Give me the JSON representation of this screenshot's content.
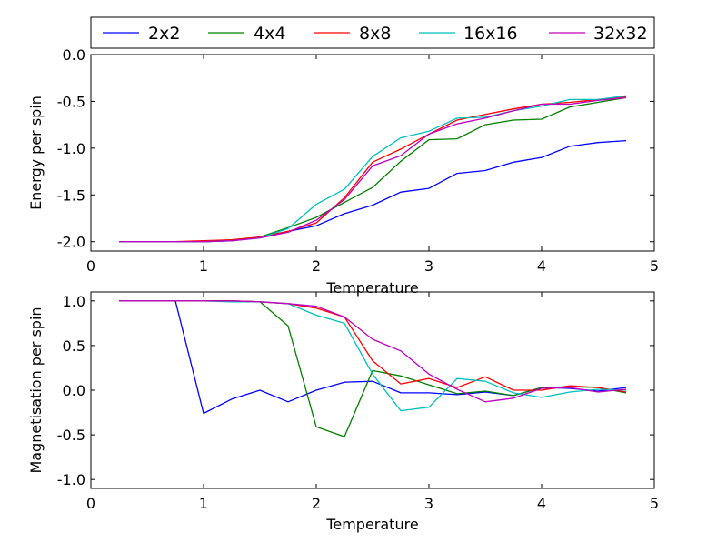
{
  "legend": {
    "entries": [
      {
        "name": "2x2",
        "color": "#0000ff"
      },
      {
        "name": "4x4",
        "color": "#008000"
      },
      {
        "name": "8x8",
        "color": "#ff0000"
      },
      {
        "name": "16x16",
        "color": "#00bfbf"
      },
      {
        "name": "32x32",
        "color": "#bf00bf"
      }
    ],
    "placement": "top"
  },
  "chart_data": [
    {
      "type": "line",
      "title": "",
      "xlabel": "Temperature",
      "ylabel": "Energy per spin",
      "xlim": [
        0,
        5
      ],
      "ylim": [
        -2.1,
        0.0
      ],
      "xticks": [
        "0",
        "1",
        "2",
        "3",
        "4",
        "5"
      ],
      "yticks": [
        "0.0",
        "-0.5",
        "-1.0",
        "-1.5",
        "-2.0"
      ],
      "x": [
        0.25,
        0.5,
        0.75,
        1.0,
        1.25,
        1.5,
        1.75,
        2.0,
        2.25,
        2.5,
        2.75,
        3.0,
        3.25,
        3.5,
        3.75,
        4.0,
        4.25,
        4.5,
        4.75
      ],
      "series": [
        {
          "name": "2x2",
          "values": [
            -2.0,
            -2.0,
            -2.0,
            -2.0,
            -1.99,
            -1.95,
            -1.89,
            -1.83,
            -1.7,
            -1.61,
            -1.47,
            -1.43,
            -1.27,
            -1.24,
            -1.15,
            -1.1,
            -0.98,
            -0.94,
            -0.92
          ]
        },
        {
          "name": "4x4",
          "values": [
            -2.0,
            -2.0,
            -2.0,
            -2.0,
            -1.98,
            -1.95,
            -1.85,
            -1.74,
            -1.58,
            -1.42,
            -1.14,
            -0.91,
            -0.9,
            -0.75,
            -0.7,
            -0.69,
            -0.56,
            -0.51,
            -0.46
          ]
        },
        {
          "name": "8x8",
          "values": [
            -2.0,
            -2.0,
            -2.0,
            -1.99,
            -1.98,
            -1.95,
            -1.89,
            -1.8,
            -1.53,
            -1.15,
            -1.01,
            -0.85,
            -0.7,
            -0.64,
            -0.58,
            -0.53,
            -0.51,
            -0.48,
            -0.45
          ]
        },
        {
          "name": "16x16",
          "values": [
            -2.0,
            -2.0,
            -2.0,
            -2.0,
            -1.99,
            -1.96,
            -1.86,
            -1.6,
            -1.44,
            -1.09,
            -0.89,
            -0.82,
            -0.68,
            -0.67,
            -0.6,
            -0.55,
            -0.48,
            -0.48,
            -0.44
          ]
        },
        {
          "name": "32x32",
          "values": [
            -2.0,
            -2.0,
            -2.0,
            -2.0,
            -1.99,
            -1.96,
            -1.9,
            -1.77,
            -1.55,
            -1.19,
            -1.08,
            -0.85,
            -0.74,
            -0.68,
            -0.6,
            -0.53,
            -0.53,
            -0.49,
            -0.46
          ]
        }
      ]
    },
    {
      "type": "line",
      "title": "",
      "xlabel": "Temperature",
      "ylabel": "Magnetisation per spin",
      "xlim": [
        0,
        5
      ],
      "ylim": [
        -1.1,
        1.1
      ],
      "xticks": [
        "0",
        "1",
        "2",
        "3",
        "4",
        "5"
      ],
      "yticks": [
        "1.0",
        "0.5",
        "0.0",
        "-0.5",
        "-1.0"
      ],
      "x": [
        0.25,
        0.5,
        0.75,
        1.0,
        1.25,
        1.5,
        1.75,
        2.0,
        2.25,
        2.5,
        2.75,
        3.0,
        3.25,
        3.5,
        3.75,
        4.0,
        4.25,
        4.5,
        4.75
      ],
      "series": [
        {
          "name": "2x2",
          "values": [
            1.0,
            1.0,
            1.0,
            -0.26,
            -0.1,
            0.0,
            -0.13,
            0.0,
            0.09,
            0.1,
            -0.03,
            -0.03,
            -0.05,
            -0.02,
            -0.06,
            0.03,
            0.02,
            -0.01,
            0.03
          ]
        },
        {
          "name": "4x4",
          "values": [
            1.0,
            1.0,
            1.0,
            1.0,
            1.0,
            0.99,
            0.72,
            -0.41,
            -0.52,
            0.22,
            0.16,
            0.06,
            -0.04,
            -0.01,
            -0.06,
            0.03,
            0.04,
            0.03,
            -0.03
          ]
        },
        {
          "name": "8x8",
          "values": [
            1.0,
            1.0,
            1.0,
            1.0,
            1.0,
            0.99,
            0.97,
            0.92,
            0.82,
            0.33,
            0.07,
            0.13,
            0.03,
            0.15,
            0.0,
            0.0,
            0.05,
            0.03,
            -0.02
          ]
        },
        {
          "name": "16x16",
          "values": [
            1.0,
            1.0,
            1.0,
            1.0,
            0.99,
            0.99,
            0.97,
            0.84,
            0.75,
            0.18,
            -0.23,
            -0.19,
            0.13,
            0.1,
            -0.03,
            -0.08,
            -0.02,
            0.01,
            0.0
          ]
        },
        {
          "name": "32x32",
          "values": [
            1.0,
            1.0,
            1.0,
            1.0,
            1.0,
            0.99,
            0.97,
            0.94,
            0.82,
            0.57,
            0.44,
            0.18,
            0.01,
            -0.13,
            -0.09,
            0.02,
            0.03,
            -0.02,
            0.01
          ]
        }
      ]
    }
  ]
}
